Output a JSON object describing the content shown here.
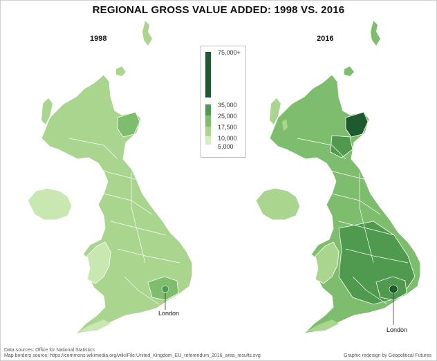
{
  "title": "REGIONAL GROSS VALUE ADDED: 1998 VS. 2016",
  "maps": [
    {
      "year": "1998",
      "callout": "London"
    },
    {
      "year": "2016",
      "callout": "London"
    }
  ],
  "legend": {
    "labels": [
      "75,000+",
      "35,000",
      "25,000",
      "17,500",
      "10,000",
      "5,000"
    ],
    "colors": [
      "#1f5a2e",
      "#4f9a4f",
      "#7fbd6e",
      "#a9d58e",
      "#d4eebf"
    ]
  },
  "colors": {
    "land_light": "#c9e7b0",
    "land_mid": "#a9d58e",
    "land_dark": "#7fbd6e",
    "land_deep": "#4f9a4f",
    "land_deepest": "#1f5a2e",
    "border": "#ffffff"
  },
  "footer": {
    "sources": "Data sources: Office for National Statistics",
    "map_source": "Map borders source: https://commons.wikimedia.org/wiki/File:United_Kingdom_EU_referendum_2016_area_results.svg",
    "credit": "Graphic redesign by Geopolitical Futures"
  }
}
